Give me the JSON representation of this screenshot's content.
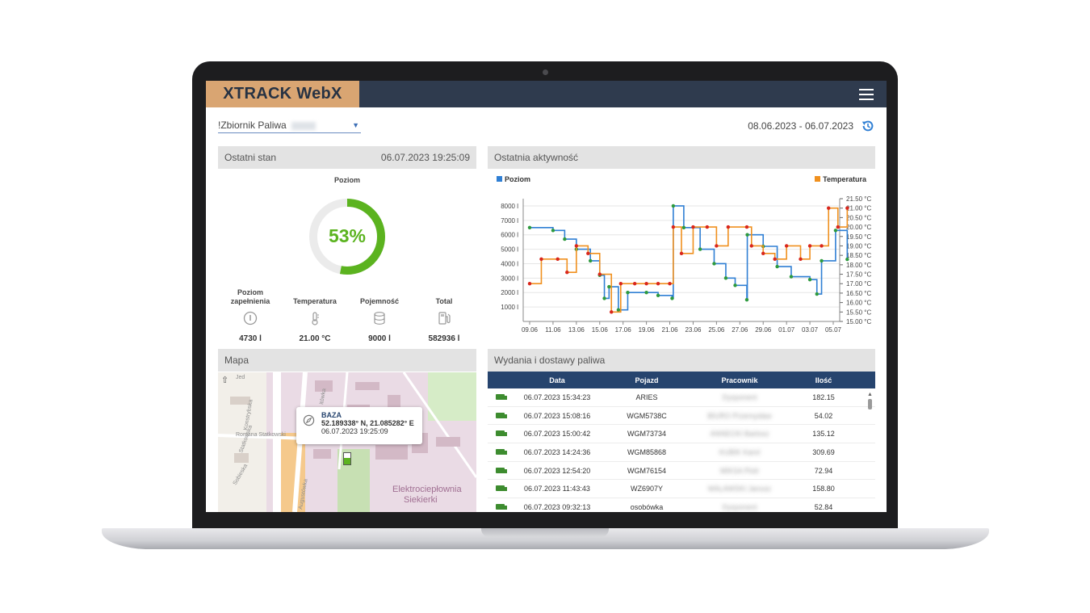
{
  "app": {
    "brand": "XTRACK WebX"
  },
  "toolbar": {
    "tank_name": "!Zbiornik Paliwa",
    "date_range": "08.06.2023 - 06.07.2023"
  },
  "last_state": {
    "title": "Ostatni stan",
    "timestamp": "06.07.2023 19:25:09",
    "gauge_label": "Poziom",
    "gauge_value": "53%",
    "gauge_fraction": 0.53,
    "stats": [
      {
        "label": "Poziom zapełnienia",
        "value": "4730 l",
        "icon": "info-icon"
      },
      {
        "label": "Temperatura",
        "value": "21.00 °C",
        "icon": "thermometer-icon"
      },
      {
        "label": "Pojemność",
        "value": "9000 l",
        "icon": "database-icon"
      },
      {
        "label": "Total",
        "value": "582936 l",
        "icon": "fuel-pump-icon"
      }
    ]
  },
  "activity": {
    "title": "Ostatnia aktywność",
    "legend": [
      {
        "name": "Poziom",
        "color": "#2f7fd4"
      },
      {
        "name": "Temperatura",
        "color": "#f0901e"
      }
    ]
  },
  "chart_data": {
    "type": "line",
    "x": [
      "09.06",
      "11.06",
      "13.06",
      "15.06",
      "17.06",
      "19.06",
      "21.06",
      "23.06",
      "25.06",
      "27.06",
      "29.06",
      "01.07",
      "03.07",
      "05.07"
    ],
    "y_left_ticks": [
      "8000 l",
      "7000 l",
      "6000 l",
      "5000 l",
      "4000 l",
      "3000 l",
      "2000 l",
      "1000 l"
    ],
    "y_right_ticks": [
      "21.50 °C",
      "21.00 °C",
      "20.50 °C",
      "20.00 °C",
      "19.50 °C",
      "19.00 °C",
      "18.50 °C",
      "18.00 °C",
      "17.50 °C",
      "17.00 °C",
      "16.50 °C",
      "16.00 °C",
      "15.50 °C",
      "15.00 °C"
    ],
    "ylim_left": [
      0,
      8500
    ],
    "ylim_right": [
      15,
      21.5
    ],
    "grid": true,
    "legend_position": "top",
    "series": [
      {
        "name": "Poziom",
        "axis": "left",
        "color": "#2f7fd4",
        "points": [
          [
            0,
            6500
          ],
          [
            1,
            6300
          ],
          [
            1.5,
            5700
          ],
          [
            2,
            5000
          ],
          [
            2.6,
            4200
          ],
          [
            3,
            3200
          ],
          [
            3.2,
            1600
          ],
          [
            3.4,
            2400
          ],
          [
            3.8,
            800
          ],
          [
            4.2,
            2000
          ],
          [
            5,
            2000
          ],
          [
            5.5,
            1800
          ],
          [
            6.1,
            1600
          ],
          [
            6.15,
            8000
          ],
          [
            6.6,
            6500
          ],
          [
            7.3,
            5000
          ],
          [
            7.9,
            4000
          ],
          [
            8.4,
            3000
          ],
          [
            8.8,
            2500
          ],
          [
            9.3,
            1500
          ],
          [
            9.32,
            6000
          ],
          [
            10,
            5200
          ],
          [
            10.6,
            3800
          ],
          [
            11.2,
            3100
          ],
          [
            12,
            2900
          ],
          [
            12.3,
            1900
          ],
          [
            12.5,
            4200
          ],
          [
            13.1,
            6300
          ],
          [
            13.6,
            4300
          ]
        ]
      },
      {
        "name": "Temperatura",
        "axis": "right",
        "color": "#f0901e",
        "points": [
          [
            0,
            17.0
          ],
          [
            0.5,
            18.3
          ],
          [
            1.2,
            18.3
          ],
          [
            1.6,
            17.6
          ],
          [
            2,
            19.0
          ],
          [
            2.5,
            18.6
          ],
          [
            3,
            17.5
          ],
          [
            3.5,
            15.5
          ],
          [
            3.9,
            17.0
          ],
          [
            4.5,
            17.0
          ],
          [
            5,
            17.0
          ],
          [
            5.5,
            17.0
          ],
          [
            6,
            17.0
          ],
          [
            6.15,
            20.0
          ],
          [
            6.5,
            18.6
          ],
          [
            7,
            20.0
          ],
          [
            7.6,
            20.0
          ],
          [
            8,
            19.0
          ],
          [
            8.5,
            20.0
          ],
          [
            9.3,
            20.0
          ],
          [
            9.5,
            19.0
          ],
          [
            10,
            18.6
          ],
          [
            10.5,
            18.3
          ],
          [
            11,
            19.0
          ],
          [
            11.6,
            18.3
          ],
          [
            12,
            19.0
          ],
          [
            12.5,
            19.0
          ],
          [
            12.8,
            21.0
          ],
          [
            13.2,
            20.0
          ],
          [
            13.6,
            21.0
          ]
        ]
      }
    ]
  },
  "map": {
    "title": "Mapa",
    "popup": {
      "name": "BAZA",
      "coords": "52.189338° N, 21.085282° E",
      "time": "06.07.2023 19:25:09"
    },
    "streets": [
      "Romana Statkowski",
      "Konstrybska",
      "Statkowska",
      "Sobieska",
      "Augustówka",
      "Elektrociepłownia",
      "Siekierki",
      "itówka",
      "Jed"
    ]
  },
  "deliveries": {
    "title": "Wydania i dostawy paliwa",
    "columns": [
      "Data",
      "Pojazd",
      "Pracownik",
      "Ilość"
    ],
    "rows": [
      {
        "date": "06.07.2023 15:34:23",
        "vehicle": "ARIES",
        "worker": "Dysponent",
        "qty": "182.15"
      },
      {
        "date": "06.07.2023 15:08:16",
        "vehicle": "WGM5738C",
        "worker": "BIURO Przemysław",
        "qty": "54.02"
      },
      {
        "date": "06.07.2023 15:00:42",
        "vehicle": "WGM73734",
        "worker": "ANNECKI Bartosz",
        "qty": "135.12"
      },
      {
        "date": "06.07.2023 14:24:36",
        "vehicle": "WGM85868",
        "worker": "KUBIK Karol",
        "qty": "309.69"
      },
      {
        "date": "06.07.2023 12:54:20",
        "vehicle": "WGM76154",
        "worker": "MIKSA Piotr",
        "qty": "72.94"
      },
      {
        "date": "06.07.2023 11:43:43",
        "vehicle": "WZ6907Y",
        "worker": "MALAWSKI Janusz",
        "qty": "158.80"
      },
      {
        "date": "06.07.2023 09:32:13",
        "vehicle": "osobówka",
        "worker": "Dysponent",
        "qty": "52.84"
      }
    ]
  }
}
